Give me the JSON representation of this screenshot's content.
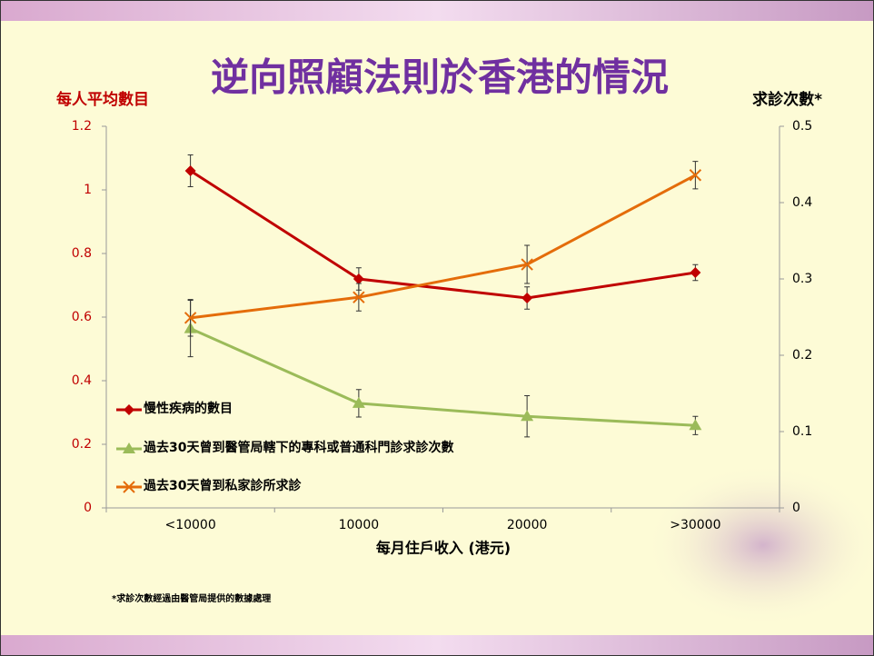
{
  "chart_data": {
    "type": "line",
    "title": "逆向照顧法則於香港的情況",
    "y_label": "每人平均數目",
    "y2_label": "求診次數*",
    "x_label": "每月住戶收入 (港元)",
    "footnote": "*求診次數經過由醫管局提供的數據處理",
    "categories": [
      "<10000",
      "10000",
      "20000",
      ">30000"
    ],
    "ylim": [
      0,
      1.2
    ],
    "yticks": [
      0,
      0.2,
      0.4,
      0.6,
      0.8,
      1,
      1.2
    ],
    "y2lim": [
      0,
      0.5
    ],
    "y2ticks": [
      0,
      0.1,
      0.2,
      0.3,
      0.4,
      0.5
    ],
    "grid": false,
    "series": [
      {
        "name": "慢性疾病的數目",
        "color": "#c00000",
        "marker": "diamond",
        "values": [
          1.06,
          0.72,
          0.66,
          0.74
        ],
        "errors": [
          0.05,
          0.035,
          0.035,
          0.025
        ]
      },
      {
        "name": "過去30天曾到醫管局轄下的專科或普通科門診求診次數",
        "color": "#9bbb59",
        "marker": "triangle",
        "axis": "y2",
        "values": [
          0.235,
          0.137,
          0.12,
          0.108
        ],
        "errors": [
          0.037,
          0.018,
          0.027,
          0.012
        ]
      },
      {
        "name": "過去30天曾到私家診所求診",
        "color": "#e46c0a",
        "marker": "x",
        "axis": "y2",
        "values": [
          0.249,
          0.276,
          0.319,
          0.436
        ],
        "errors": [
          0.024,
          0.018,
          0.025,
          0.018
        ]
      }
    ]
  }
}
